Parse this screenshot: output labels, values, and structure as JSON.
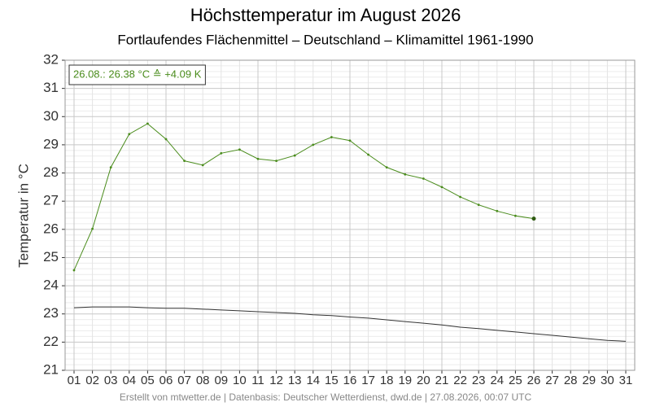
{
  "chart_data": {
    "type": "line",
    "title": "Höchsttemperatur im August 2026",
    "subtitle": "Fortlaufendes Flächenmittel – Deutschland – Klimamittel 1961-1990",
    "ylabel": "Temperatur in °C",
    "annotation": "26.08.: 26.38 °C ≙ +4.09 K",
    "footer": "Erstellt von mtwetter.de | Datenbasis: Deutscher Wetterdienst, dwd.de | 27.08.2026, 00:07 UTC",
    "categories": [
      "01",
      "02",
      "03",
      "04",
      "05",
      "06",
      "07",
      "08",
      "09",
      "10",
      "11",
      "12",
      "13",
      "14",
      "15",
      "16",
      "17",
      "18",
      "19",
      "20",
      "21",
      "22",
      "23",
      "24",
      "25",
      "26",
      "27",
      "28",
      "29",
      "30",
      "31"
    ],
    "series": [
      {
        "color": "#4a8c1c",
        "values": [
          24.55,
          26.02,
          28.2,
          29.38,
          29.75,
          29.2,
          28.43,
          28.28,
          28.7,
          28.83,
          28.5,
          28.43,
          28.62,
          29.0,
          29.27,
          29.15,
          28.65,
          28.2,
          27.95,
          27.8,
          27.5,
          27.15,
          26.87,
          26.65,
          26.48,
          26.38,
          null,
          null,
          null,
          null,
          null
        ]
      },
      {
        "color": "#333333",
        "values": [
          23.22,
          23.25,
          23.25,
          23.25,
          23.22,
          23.2,
          23.2,
          23.17,
          23.14,
          23.11,
          23.08,
          23.05,
          23.02,
          22.97,
          22.94,
          22.89,
          22.85,
          22.79,
          22.73,
          22.67,
          22.61,
          22.53,
          22.48,
          22.42,
          22.36,
          22.3,
          22.24,
          22.18,
          22.12,
          22.06,
          22.03
        ]
      }
    ],
    "ylim": [
      21,
      32
    ],
    "yticks": [
      21,
      22,
      23,
      24,
      25,
      26,
      27,
      28,
      29,
      30,
      31,
      32
    ],
    "grid": true
  }
}
